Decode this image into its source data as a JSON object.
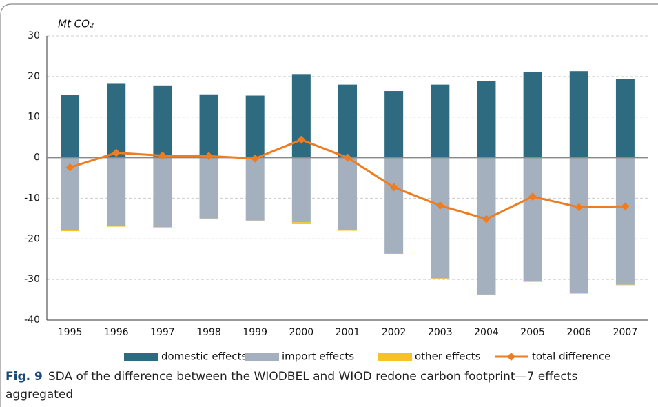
{
  "chart_data": {
    "type": "bar",
    "y_label": "Mt CO₂",
    "categories": [
      "1995",
      "1996",
      "1997",
      "1998",
      "1999",
      "2000",
      "2001",
      "2002",
      "2003",
      "2004",
      "2005",
      "2006",
      "2007"
    ],
    "series": [
      {
        "name": "domestic effects",
        "type": "bar",
        "color": "#2e6a80",
        "values": [
          15.5,
          18.2,
          17.8,
          15.6,
          15.3,
          20.6,
          18.0,
          16.4,
          18.0,
          18.8,
          21.0,
          21.3,
          19.4
        ]
      },
      {
        "name": "import effects",
        "type": "bar",
        "color": "#a5b0bf",
        "values": [
          -17.9,
          -16.9,
          -17.1,
          -15.0,
          -15.5,
          -15.9,
          -17.9,
          -23.6,
          -29.7,
          -33.7,
          -30.4,
          -33.4,
          -31.3
        ]
      },
      {
        "name": "other effects",
        "type": "bar",
        "color": "#f5c227",
        "values": [
          -0.2,
          -0.1,
          -0.1,
          -0.2,
          -0.1,
          -0.3,
          -0.1,
          -0.1,
          -0.1,
          -0.1,
          -0.2,
          -0.1,
          -0.1
        ]
      },
      {
        "name": "total difference",
        "type": "line",
        "color": "#ee7d22",
        "values": [
          -2.4,
          1.2,
          0.5,
          0.4,
          -0.2,
          4.4,
          0.0,
          -7.3,
          -11.8,
          -15.1,
          -9.6,
          -12.2,
          -12.0
        ]
      }
    ],
    "ylim": [
      -40,
      30
    ],
    "yticks": [
      -40,
      -30,
      -20,
      -10,
      0,
      10,
      20,
      30
    ],
    "grid": true,
    "legend": "bottom"
  },
  "caption": {
    "label": "Fig. 9",
    "text": "SDA of the difference between the WIODBEL and WIOD redone carbon footprint—7 effects",
    "text2": "aggregated"
  }
}
